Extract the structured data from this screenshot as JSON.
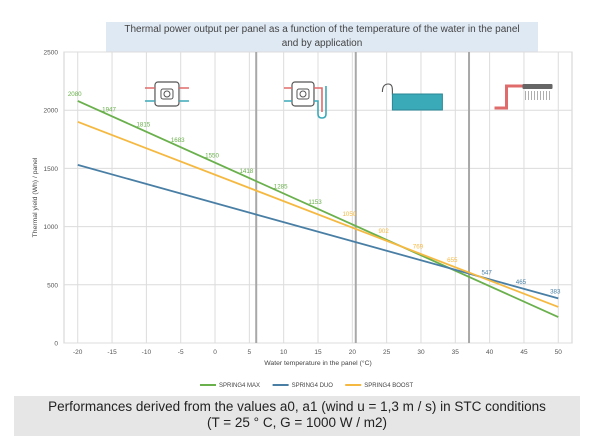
{
  "header": {
    "title_line1": "Thermal power output per panel as a function of the temperature of the water in the panel",
    "title_line2": "and by application"
  },
  "footer": {
    "line1": "Performances derived from the values a0, a1 (wind u = 1,3 m / s) in STC conditions",
    "line2": "(T = 25 ° C, G = 1000 W / m2)"
  },
  "chart_data": {
    "type": "line",
    "xlabel": "Water temperature in the panel (°C)",
    "ylabel": "Thermal yield (Wh) / panel",
    "xlim": [
      -22,
      52
    ],
    "ylim": [
      0,
      2500
    ],
    "x_ticks": [
      -20,
      -15,
      -10,
      -5,
      0,
      5,
      10,
      15,
      20,
      25,
      30,
      35,
      40,
      45,
      50
    ],
    "y_ticks": [
      0,
      500,
      1000,
      1500,
      2000,
      2500
    ],
    "grid": true,
    "legend_position": "bottom",
    "zone_dividers": [
      6,
      20.5,
      37
    ],
    "zone_icons": [
      "heat-pump-icon",
      "heat-pump-tank-icon",
      "pool-icon",
      "shower-icon"
    ],
    "series": [
      {
        "name": "SPRING4 MAX",
        "color": "#6ab04c",
        "x": [
          -20,
          50
        ],
        "y": [
          2080,
          223
        ],
        "labels": [
          {
            "x": -20,
            "y": 2080,
            "text": "2080"
          },
          {
            "x": -15,
            "y": 1947,
            "text": "1947"
          },
          {
            "x": -10,
            "y": 1815,
            "text": "1815"
          },
          {
            "x": -5,
            "y": 1683,
            "text": "1683"
          },
          {
            "x": 0,
            "y": 1550,
            "text": "1550"
          },
          {
            "x": 5,
            "y": 1418,
            "text": "1418"
          },
          {
            "x": 10,
            "y": 1285,
            "text": "1285"
          },
          {
            "x": 15,
            "y": 1153,
            "text": "1153"
          }
        ]
      },
      {
        "name": "SPRING4 DUO",
        "color": "#4a7fa5",
        "x": [
          -20,
          50
        ],
        "y": [
          1530,
          383
        ],
        "labels": [
          {
            "x": 40,
            "y": 547,
            "text": "547"
          },
          {
            "x": 45,
            "y": 465,
            "text": "465"
          },
          {
            "x": 50,
            "y": 383,
            "text": "383"
          }
        ]
      },
      {
        "name": "SPRING4 BOOST",
        "color": "#f5b942",
        "x": [
          -20,
          50
        ],
        "y": [
          1900,
          310
        ],
        "labels": [
          {
            "x": 20,
            "y": 1050,
            "text": "1050"
          },
          {
            "x": 25,
            "y": 902,
            "text": "902"
          },
          {
            "x": 30,
            "y": 769,
            "text": "769"
          },
          {
            "x": 35,
            "y": 655,
            "text": "655"
          }
        ]
      }
    ]
  }
}
